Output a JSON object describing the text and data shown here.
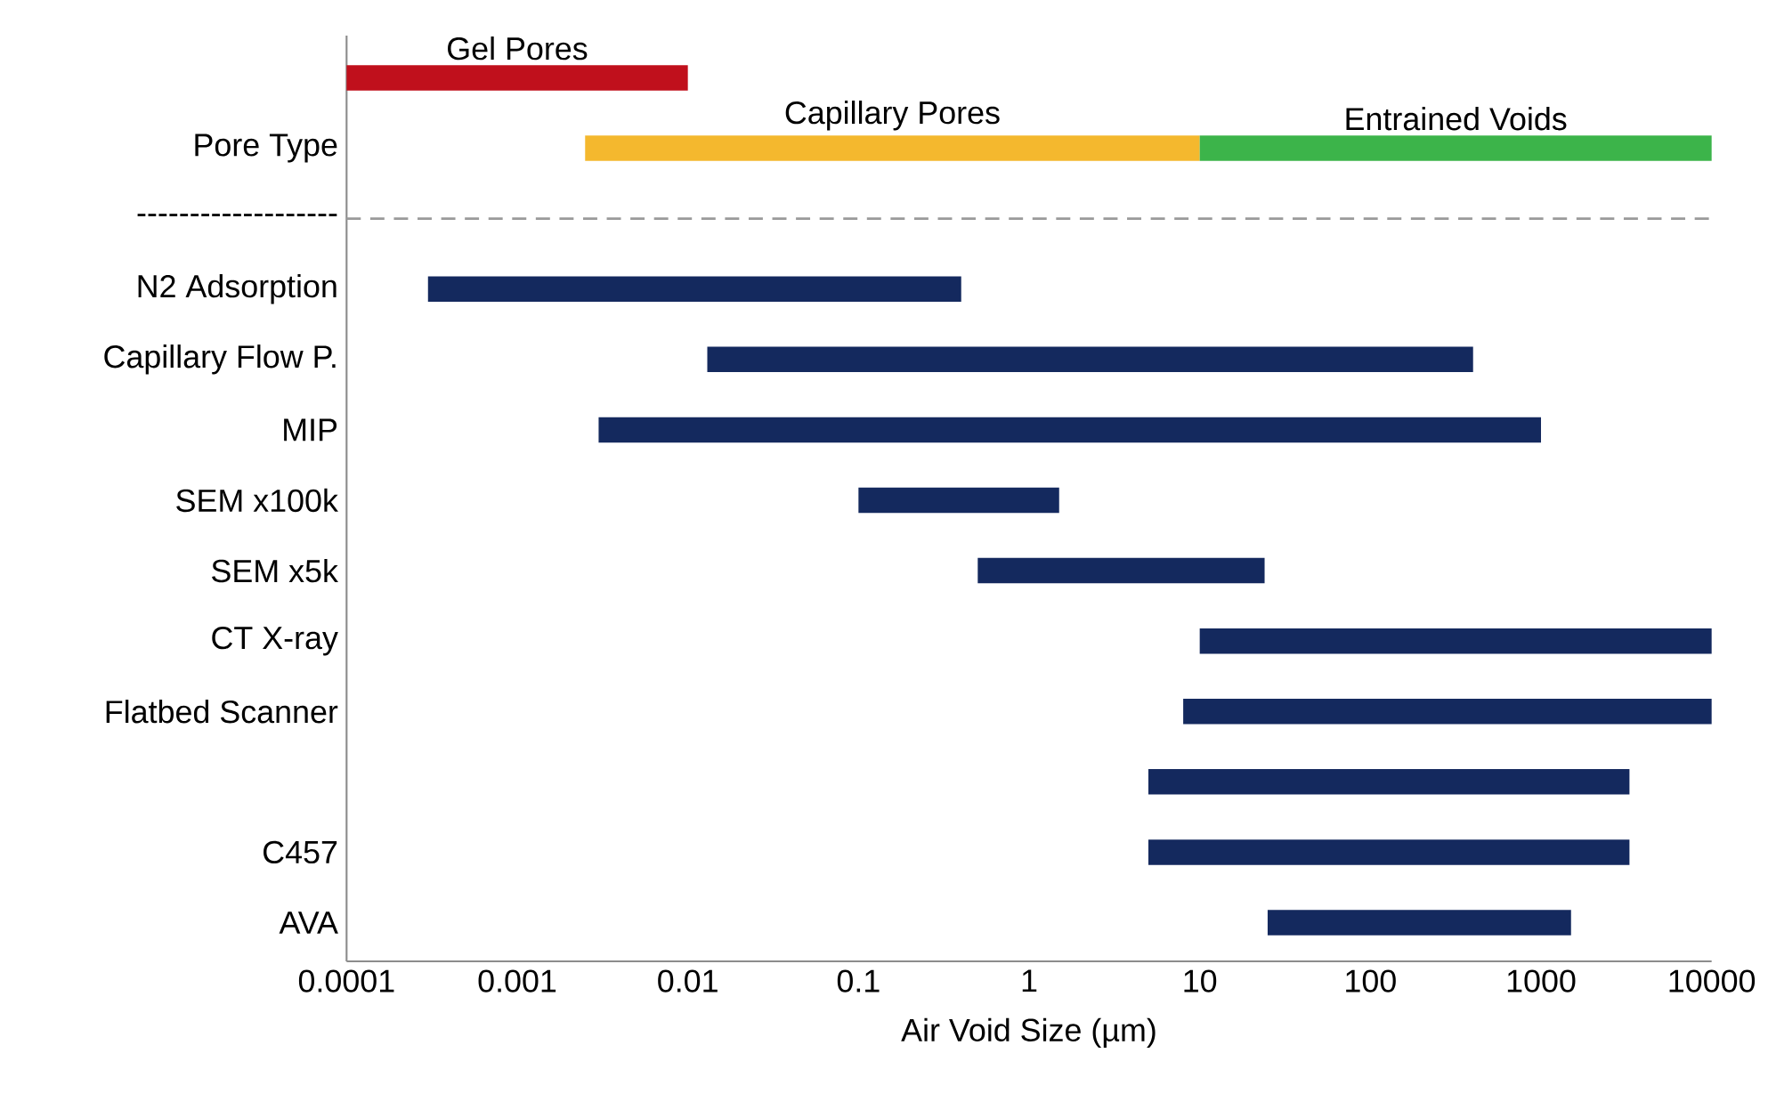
{
  "chart_data": {
    "type": "bar",
    "orientation": "horizontal",
    "log": "x",
    "xlabel": "Air Void Size (µm)",
    "categories": [
      null,
      "Pore Type",
      "-------------------",
      "N2 Adsorption",
      "Capillary Flow P.",
      "MIP",
      "SEM x100k",
      "SEM x5k",
      "CT X-ray",
      "Flatbed Scanner",
      null,
      "C457",
      "AVA"
    ],
    "xlim": [
      0.0001,
      10000
    ],
    "xticks": [
      0.0001,
      0.001,
      0.01,
      0.1,
      1,
      10,
      100,
      1000,
      10000
    ],
    "ref_lines": [
      {
        "axis": "y",
        "value": "-------------------",
        "line_style": "dashed",
        "color": "#9a9a9a"
      }
    ],
    "series": [
      {
        "name": "Gel Pores",
        "color": "#c0101c",
        "base": [
          0.0001,
          null,
          null,
          null,
          null,
          null,
          null,
          null,
          null,
          null,
          null,
          null,
          null
        ],
        "values": [
          0.0099,
          null,
          null,
          null,
          null,
          null,
          null,
          null,
          null,
          null,
          null,
          null,
          null
        ]
      },
      {
        "name": "Capillary Pores",
        "color": "#f4b82e",
        "base": [
          null,
          0.0025,
          null,
          null,
          null,
          null,
          null,
          null,
          null,
          null,
          null,
          null,
          null
        ],
        "values": [
          null,
          9.9975,
          null,
          null,
          null,
          null,
          null,
          null,
          null,
          null,
          null,
          null,
          null
        ]
      },
      {
        "name": "Entrained Voids",
        "color": "#3cb44a",
        "base": [
          null,
          10,
          null,
          null,
          null,
          null,
          null,
          null,
          null,
          null,
          null,
          null,
          null
        ],
        "values": [
          null,
          9990,
          null,
          null,
          null,
          null,
          null,
          null,
          null,
          null,
          null,
          null,
          null
        ]
      },
      {
        "color": "#14295e",
        "base": [
          null,
          null,
          null,
          0.0003,
          0.013,
          0.003,
          0.1,
          0.5,
          10,
          8,
          5,
          5,
          25
        ],
        "values": [
          null,
          null,
          null,
          0.3997,
          399.987,
          999.997,
          1.4,
          23.5,
          9990,
          9992,
          3295,
          3295,
          1475
        ]
      }
    ]
  }
}
